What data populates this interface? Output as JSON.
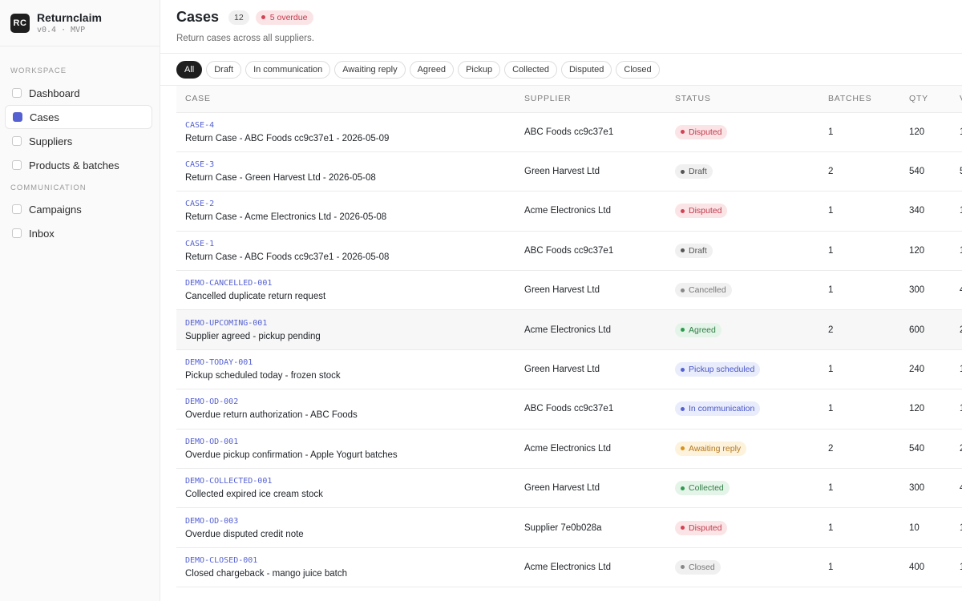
{
  "app": {
    "logo": "RC",
    "name": "Returnclaim",
    "version": "v0.4 · MVP"
  },
  "sidebar": {
    "sections": [
      {
        "title": "WORKSPACE",
        "items": [
          {
            "label": "Dashboard",
            "active": false
          },
          {
            "label": "Cases",
            "active": true
          },
          {
            "label": "Suppliers",
            "active": false
          },
          {
            "label": "Products & batches",
            "active": false
          }
        ]
      },
      {
        "title": "COMMUNICATION",
        "items": [
          {
            "label": "Campaigns",
            "active": false
          },
          {
            "label": "Inbox",
            "active": false
          }
        ]
      }
    ]
  },
  "header": {
    "title": "Cases",
    "count": "12",
    "overdue": "5 overdue",
    "subtitle": "Return cases across all suppliers."
  },
  "filters": [
    "All",
    "Draft",
    "In communication",
    "Awaiting reply",
    "Agreed",
    "Pickup",
    "Collected",
    "Disputed",
    "Closed"
  ],
  "active_filter": "All",
  "table": {
    "columns": [
      "CASE",
      "SUPPLIER",
      "STATUS",
      "BATCHES",
      "QTY",
      "V"
    ],
    "rows": [
      {
        "id": "CASE-4",
        "name": "Return Case - ABC Foods cc9c37e1 - 2026-05-09",
        "supplier": "ABC Foods cc9c37e1",
        "status": "Disputed",
        "batches": "1",
        "qty": "120",
        "v": "1"
      },
      {
        "id": "CASE-3",
        "name": "Return Case - Green Harvest Ltd - 2026-05-08",
        "supplier": "Green Harvest Ltd",
        "status": "Draft",
        "batches": "2",
        "qty": "540",
        "v": "5"
      },
      {
        "id": "CASE-2",
        "name": "Return Case - Acme Electronics Ltd - 2026-05-08",
        "supplier": "Acme Electronics Ltd",
        "status": "Disputed",
        "batches": "1",
        "qty": "340",
        "v": "1"
      },
      {
        "id": "CASE-1",
        "name": "Return Case - ABC Foods cc9c37e1 - 2026-05-08",
        "supplier": "ABC Foods cc9c37e1",
        "status": "Draft",
        "batches": "1",
        "qty": "120",
        "v": "1"
      },
      {
        "id": "DEMO-CANCELLED-001",
        "name": "Cancelled duplicate return request",
        "supplier": "Green Harvest Ltd",
        "status": "Cancelled",
        "batches": "1",
        "qty": "300",
        "v": "4"
      },
      {
        "id": "DEMO-UPCOMING-001",
        "name": "Supplier agreed - pickup pending",
        "supplier": "Acme Electronics Ltd",
        "status": "Agreed",
        "batches": "2",
        "qty": "600",
        "v": "2"
      },
      {
        "id": "DEMO-TODAY-001",
        "name": "Pickup scheduled today - frozen stock",
        "supplier": "Green Harvest Ltd",
        "status": "Pickup scheduled",
        "batches": "1",
        "qty": "240",
        "v": "1"
      },
      {
        "id": "DEMO-OD-002",
        "name": "Overdue return authorization - ABC Foods",
        "supplier": "ABC Foods cc9c37e1",
        "status": "In communication",
        "batches": "1",
        "qty": "120",
        "v": "1"
      },
      {
        "id": "DEMO-OD-001",
        "name": "Overdue pickup confirmation - Apple Yogurt batches",
        "supplier": "Acme Electronics Ltd",
        "status": "Awaiting reply",
        "batches": "2",
        "qty": "540",
        "v": "2"
      },
      {
        "id": "DEMO-COLLECTED-001",
        "name": "Collected expired ice cream stock",
        "supplier": "Green Harvest Ltd",
        "status": "Collected",
        "batches": "1",
        "qty": "300",
        "v": "4"
      },
      {
        "id": "DEMO-OD-003",
        "name": "Overdue disputed credit note",
        "supplier": "Supplier 7e0b028a",
        "status": "Disputed",
        "batches": "1",
        "qty": "10",
        "v": "1"
      },
      {
        "id": "DEMO-CLOSED-001",
        "name": "Closed chargeback - mango juice batch",
        "supplier": "Acme Electronics Ltd",
        "status": "Closed",
        "batches": "1",
        "qty": "400",
        "v": "1"
      }
    ]
  },
  "status_colors": {
    "Disputed": {
      "bg": "#fbe4e6",
      "fg": "#c23a4b",
      "dot": "#d14356"
    },
    "Draft": {
      "bg": "#f0f0f0",
      "fg": "#555555",
      "dot": "#555555"
    },
    "Cancelled": {
      "bg": "#f0f0f0",
      "fg": "#777777",
      "dot": "#888888"
    },
    "Agreed": {
      "bg": "#e4f4e8",
      "fg": "#2f7d45",
      "dot": "#2f9a4f"
    },
    "Pickup scheduled": {
      "bg": "#e8ecfb",
      "fg": "#4a57c8",
      "dot": "#5561d1"
    },
    "In communication": {
      "bg": "#e8ecfb",
      "fg": "#4a57c8",
      "dot": "#5561d1"
    },
    "Awaiting reply": {
      "bg": "#fdf2dc",
      "fg": "#b7791f",
      "dot": "#d9921c"
    },
    "Collected": {
      "bg": "#e4f4e8",
      "fg": "#2f7d45",
      "dot": "#2f9a4f"
    },
    "Closed": {
      "bg": "#f0f0f0",
      "fg": "#777777",
      "dot": "#888888"
    }
  },
  "highlighted_row": 5
}
